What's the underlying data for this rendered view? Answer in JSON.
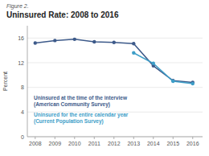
{
  "chart_data": {
    "type": "line",
    "subtitle": "Figure 2.",
    "title": "Uninsured Rate: 2008 to 2016",
    "y_label": "Percent",
    "x": [
      2008,
      2009,
      2010,
      2011,
      2012,
      2013,
      2014,
      2015,
      2016
    ],
    "series": [
      {
        "name": "Uninsured at the time of the interview",
        "color": "#3d5a8a",
        "marker": "circle",
        "values": [
          15.2,
          15.6,
          15.8,
          15.4,
          15.3,
          15.1,
          11.5,
          9.1,
          8.8
        ]
      },
      {
        "name": "Uninsured for the entire calendar year",
        "color": "#3d9ec8",
        "marker": "circle",
        "values": [
          null,
          null,
          null,
          null,
          null,
          13.6,
          11.9,
          9.0,
          8.6
        ]
      }
    ],
    "annotations": [
      "(American Community Survey)",
      "(Current Population Survey)"
    ],
    "xlim": [
      2007.6,
      2016.5
    ],
    "xticks": [
      2008,
      2009,
      2010,
      2011,
      2012,
      2013,
      2014,
      2015,
      2016
    ],
    "ylim": [
      0,
      18
    ],
    "yticks": [
      0,
      4,
      8,
      12,
      16
    ],
    "grid": true
  }
}
